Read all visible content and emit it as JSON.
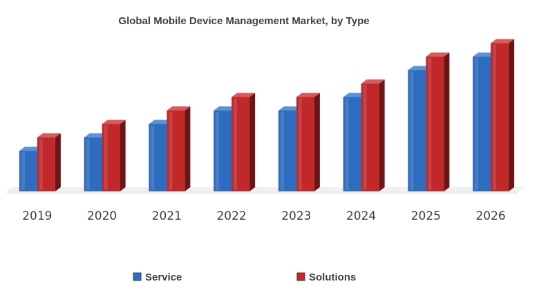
{
  "chart_data": {
    "type": "bar",
    "title": "Global Mobile Device Management Market, by Type",
    "categories": [
      "2019",
      "2020",
      "2021",
      "2022",
      "2023",
      "2024",
      "2025",
      "2026"
    ],
    "series": [
      {
        "name": "Service",
        "values": [
          3.0,
          4.0,
          5.0,
          6.0,
          6.0,
          7.0,
          9.0,
          10.0
        ],
        "color": "#2E6CC0"
      },
      {
        "name": "Solutions",
        "values": [
          4.0,
          5.0,
          6.0,
          7.0,
          7.0,
          8.0,
          10.0,
          11.0
        ],
        "color": "#C0282A"
      }
    ],
    "ylim": [
      0,
      12
    ],
    "grid": false,
    "legend_position": "bottom",
    "xlabel": "",
    "ylabel": ""
  }
}
